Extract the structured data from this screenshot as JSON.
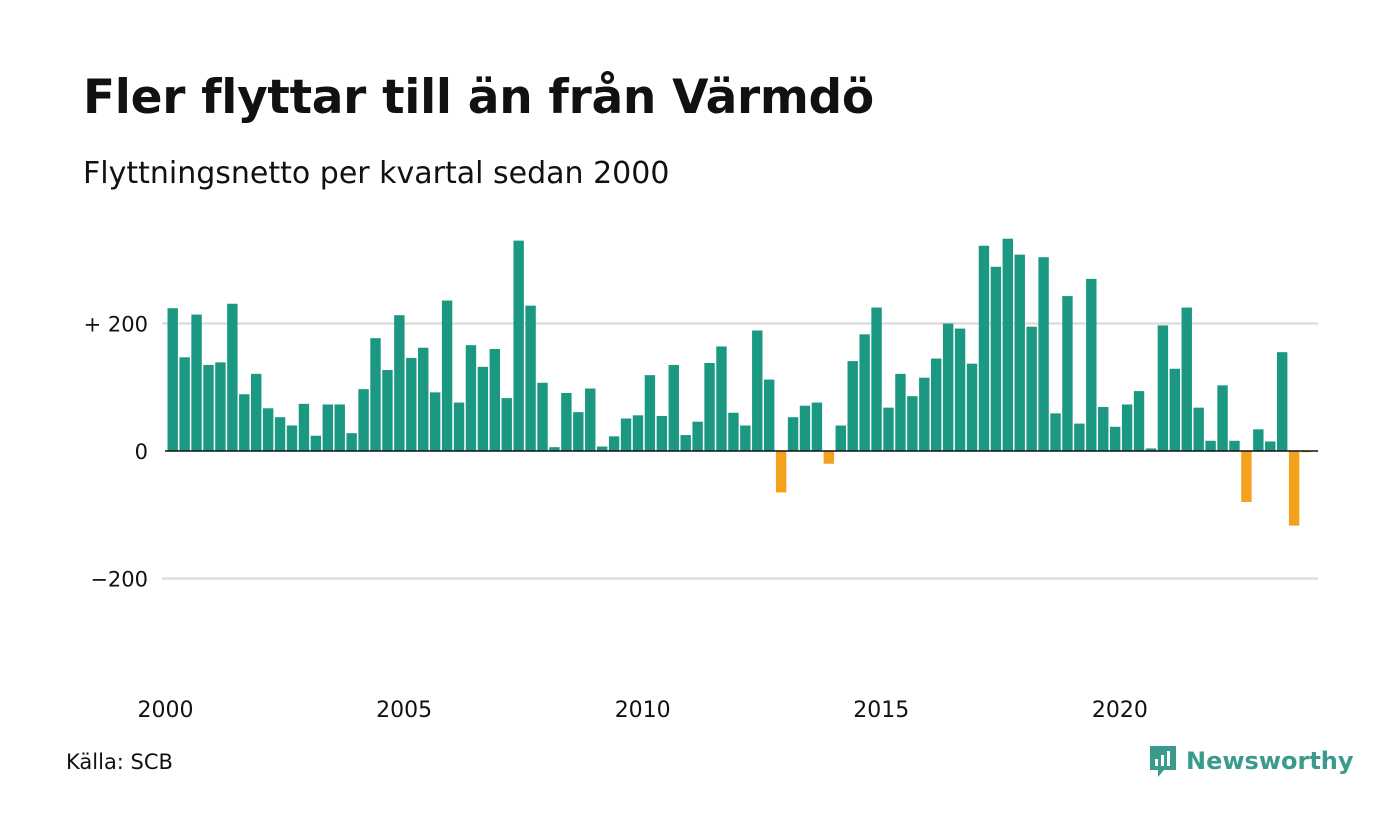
{
  "header": {
    "title": "Fler flyttar till än från Värmdö",
    "subtitle": "Flyttningsnetto per kvartal sedan 2000"
  },
  "footer": {
    "source": "Källa: SCB",
    "brand": "Newsworthy",
    "brand_icon": "newsworthy-logo-icon"
  },
  "colors": {
    "positive": "#1a9882",
    "negative": "#f4a11e",
    "grid": "#dddddd",
    "zero_line": "#111111",
    "brand": "#3a9a8c"
  },
  "chart_data": {
    "type": "bar",
    "title": "Fler flyttar till än från Värmdö",
    "subtitle": "Flyttningsnetto per kvartal sedan 2000",
    "xlabel": "",
    "ylabel": "",
    "x_ticks": [
      "2000",
      "2005",
      "2010",
      "2015",
      "2020"
    ],
    "y_ticks": [
      {
        "value": 200,
        "label": "+ 200"
      },
      {
        "value": 0,
        "label": "0"
      },
      {
        "value": -200,
        "label": "−200"
      }
    ],
    "ylim": [
      -360,
      360
    ],
    "grid": true,
    "legend": "none",
    "start_year": 2000,
    "series": [
      {
        "values": [
          224,
          147,
          214,
          135,
          139,
          231,
          89,
          121,
          67,
          53,
          40,
          74,
          24,
          73,
          73,
          28,
          97,
          177,
          127,
          213,
          146,
          162,
          92,
          236,
          76,
          166,
          132,
          160,
          83,
          330,
          228,
          107,
          6,
          91,
          61,
          98,
          7,
          23,
          51,
          56,
          119,
          55,
          135,
          25,
          46,
          138,
          164,
          60,
          40,
          189,
          112,
          -65,
          53,
          71,
          76,
          -20,
          40,
          141,
          183,
          225,
          68,
          121,
          86,
          115,
          145,
          200,
          192,
          137,
          322,
          289,
          333,
          308,
          195,
          304,
          59,
          243,
          43,
          270,
          69,
          38,
          73,
          94,
          4,
          197,
          129,
          225,
          68,
          16,
          103,
          16,
          -80,
          34,
          15,
          155,
          -117,
          -2
        ]
      }
    ]
  }
}
